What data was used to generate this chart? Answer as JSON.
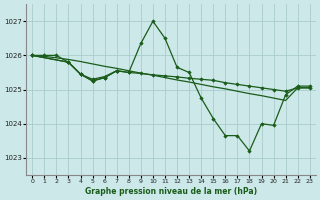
{
  "title": "Graphe pression niveau de la mer (hPa)",
  "background_color": "#cce8e8",
  "grid_color": "#aacccc",
  "line_color": "#1a5c1a",
  "marker_color": "#1a5c1a",
  "ylim": [
    1022.5,
    1027.5
  ],
  "xlim": [
    -0.5,
    23.5
  ],
  "yticks": [
    1023,
    1024,
    1025,
    1026,
    1027
  ],
  "xticks": [
    0,
    1,
    2,
    3,
    4,
    5,
    6,
    7,
    8,
    9,
    10,
    11,
    12,
    13,
    14,
    15,
    16,
    17,
    18,
    19,
    20,
    21,
    22,
    23
  ],
  "series": [
    {
      "x": [
        0,
        1,
        2,
        3,
        4,
        5,
        6,
        7,
        8,
        9,
        10,
        11,
        12,
        13,
        14,
        15,
        16,
        17,
        18,
        19,
        20,
        21,
        22,
        23
      ],
      "y": [
        1026.0,
        1026.0,
        1026.0,
        1025.8,
        1025.45,
        1025.25,
        1025.35,
        1025.55,
        1025.5,
        1026.35,
        1027.0,
        1026.5,
        1025.65,
        1025.5,
        1024.75,
        1024.15,
        1023.65,
        1023.65,
        1023.2,
        1024.0,
        1023.95,
        1024.85,
        1025.1,
        1025.1
      ],
      "marker": true,
      "linewidth": 0.9
    },
    {
      "x": [
        0,
        1,
        2,
        3,
        4,
        5,
        6,
        7,
        8,
        9,
        10,
        11,
        12,
        13,
        14,
        15,
        16,
        17,
        18,
        19,
        20,
        21,
        22,
        23
      ],
      "y": [
        1026.0,
        1025.97,
        1025.93,
        1025.88,
        1025.82,
        1025.75,
        1025.68,
        1025.62,
        1025.55,
        1025.48,
        1025.42,
        1025.35,
        1025.28,
        1025.22,
        1025.15,
        1025.08,
        1025.02,
        1024.95,
        1024.88,
        1024.82,
        1024.75,
        1024.68,
        1025.05,
        1025.05
      ],
      "marker": false,
      "linewidth": 0.9
    },
    {
      "x": [
        0,
        3,
        4,
        5,
        6,
        7
      ],
      "y": [
        1026.0,
        1025.8,
        1025.45,
        1025.25,
        1025.35,
        1025.55
      ],
      "marker": true,
      "linewidth": 0.9
    },
    {
      "x": [
        0,
        3,
        4,
        5,
        6,
        7,
        8,
        9,
        10,
        11,
        12,
        13,
        14,
        15,
        16,
        17,
        18,
        19,
        20,
        21,
        22,
        23
      ],
      "y": [
        1026.0,
        1025.8,
        1025.45,
        1025.3,
        1025.38,
        1025.55,
        1025.5,
        1025.47,
        1025.43,
        1025.4,
        1025.37,
        1025.33,
        1025.3,
        1025.27,
        1025.2,
        1025.15,
        1025.1,
        1025.05,
        1025.0,
        1024.95,
        1025.05,
        1025.05
      ],
      "marker": true,
      "linewidth": 0.9
    }
  ]
}
